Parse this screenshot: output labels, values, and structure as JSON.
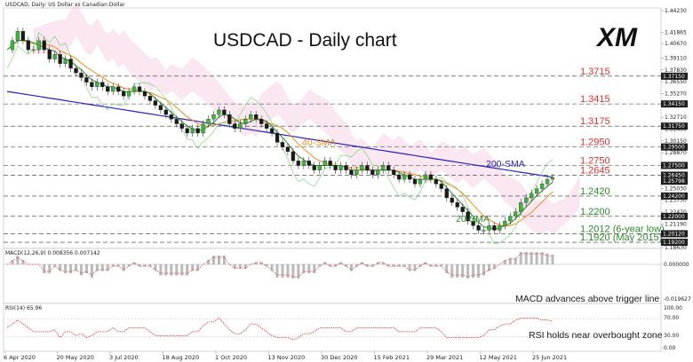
{
  "chart_data": {
    "type": "candlestick",
    "header_text": "USDCAD, Daily:  US Dollar vs Canadian Dollar",
    "title": "USDCAD - Daily chart",
    "logo_text": "XM",
    "y_ticks": [
      "1.44230",
      "1.41865",
      "1.40670",
      "1.39110",
      "1.37830",
      "1.36550",
      "1.35270",
      "1.33990",
      "1.32710",
      "1.31430",
      "1.30150",
      "1.28870",
      "1.27590",
      "1.26310",
      "1.25030",
      "1.23750",
      "1.22470",
      "1.21190",
      "1.19910",
      "1.18630"
    ],
    "badge_values": [
      "1.37150",
      "1.34150",
      "1.31750",
      "1.29500",
      "1.27500",
      "1.26450",
      "1.25798",
      "1.24200",
      "1.22000",
      "1.20120",
      "1.19200"
    ],
    "x_labels": [
      "6 Apr 2020",
      "20 May 2020",
      "3 Jul 2020",
      "18 Aug 2020",
      "1 Oct 2020",
      "13 Nov 2020",
      "30 Dec 2020",
      "15 Feb 2021",
      "29 Mar 2021",
      "12 May 2021",
      "25 Jun 2021"
    ],
    "levels": [
      {
        "label": "1.3715",
        "value": 1.3715,
        "color": "#e0302a"
      },
      {
        "label": "1.3415",
        "value": 1.3415,
        "color": "#e0302a"
      },
      {
        "label": "1.3175",
        "value": 1.3175,
        "color": "#e0302a"
      },
      {
        "label": "1.2950",
        "value": 1.295,
        "color": "#e0302a"
      },
      {
        "label": "1.2750",
        "value": 1.275,
        "color": "#e0302a"
      },
      {
        "label": "1.2645",
        "value": 1.2645,
        "color": "#e0302a"
      },
      {
        "label": "1.2420",
        "value": 1.242,
        "color": "#2c8a2c"
      },
      {
        "label": "1.2200",
        "value": 1.22,
        "color": "#2c8a2c"
      },
      {
        "label": "1.2012 (6-year low)",
        "value": 1.2012,
        "color": "#2c8a2c"
      },
      {
        "label": "1.1920 (May 2015)",
        "value": 1.192,
        "color": "#2c8a2c"
      }
    ],
    "sma_labels": [
      {
        "label": "40-SMA",
        "color": "#f08c1a"
      },
      {
        "label": "200-SMA",
        "color": "#2424c8"
      },
      {
        "label": "20-SMA",
        "color": "#2c8a2c"
      }
    ],
    "close_series": [
      1.4,
      1.41,
      1.42,
      1.41,
      1.4,
      1.4,
      1.41,
      1.4,
      1.39,
      1.395,
      1.385,
      1.39,
      1.38,
      1.375,
      1.37,
      1.365,
      1.36,
      1.365,
      1.36,
      1.355,
      1.36,
      1.355,
      1.35,
      1.355,
      1.36,
      1.355,
      1.35,
      1.345,
      1.34,
      1.335,
      1.33,
      1.325,
      1.32,
      1.315,
      1.31,
      1.315,
      1.31,
      1.32,
      1.325,
      1.33,
      1.335,
      1.33,
      1.32,
      1.315,
      1.32,
      1.325,
      1.33,
      1.325,
      1.32,
      1.315,
      1.31,
      1.3,
      1.295,
      1.29,
      1.28,
      1.275,
      1.28,
      1.275,
      1.27,
      1.275,
      1.28,
      1.275,
      1.27,
      1.275,
      1.27,
      1.265,
      1.27,
      1.275,
      1.27,
      1.265,
      1.27,
      1.275,
      1.27,
      1.265,
      1.26,
      1.265,
      1.26,
      1.255,
      1.26,
      1.265,
      1.26,
      1.255,
      1.25,
      1.24,
      1.235,
      1.23,
      1.225,
      1.215,
      1.21,
      1.205,
      1.205,
      1.21,
      1.205,
      1.21,
      1.215,
      1.22,
      1.225,
      1.235,
      1.24,
      1.245,
      1.25,
      1.255,
      1.26,
      1.262
    ],
    "indicators": [
      {
        "name": "MACD",
        "title": "MACD(12,26,9) 0.008356 0.007142",
        "y_ticks": [
          "0.000000",
          "-0.019627"
        ],
        "note": "MACD advances above trigger line"
      },
      {
        "name": "RSI",
        "title": "RSI(14) 65.96",
        "y_ticks": [
          "100.00",
          "70.00",
          "30.00",
          "0.00"
        ],
        "note": "RSI holds near overbought zone"
      }
    ]
  }
}
